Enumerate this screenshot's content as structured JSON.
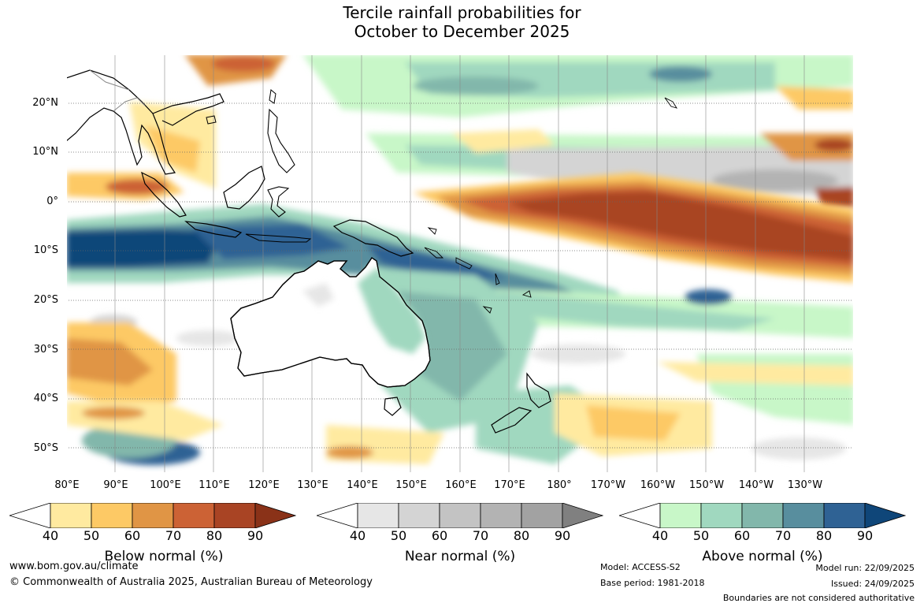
{
  "title": {
    "line1": "Tercile rainfall probabilities for",
    "line2": "October to December 2025"
  },
  "map": {
    "lat_labels": [
      "20°N",
      "10°N",
      "0°",
      "10°S",
      "20°S",
      "30°S",
      "40°S",
      "50°S"
    ],
    "lon_labels": [
      "80°E",
      "90°E",
      "100°E",
      "110°E",
      "120°E",
      "130°E",
      "140°E",
      "150°E",
      "160°E",
      "170°E",
      "180°",
      "170°W",
      "160°W",
      "150°W",
      "140°W",
      "130°W"
    ]
  },
  "colorbars": {
    "below": {
      "label": "Below normal (%)",
      "ticks": [
        "40",
        "50",
        "60",
        "70",
        "80",
        "90"
      ],
      "colors": [
        "#ffffff",
        "#ffeaa0",
        "#fdc965",
        "#e09545",
        "#cc6235",
        "#a94424",
        "#8a3218"
      ]
    },
    "near": {
      "label": "Near normal (%)",
      "ticks": [
        "40",
        "50",
        "60",
        "70",
        "80",
        "90"
      ],
      "colors": [
        "#ffffff",
        "#e6e6e6",
        "#d4d4d4",
        "#c3c3c3",
        "#b3b3b3",
        "#a2a2a2",
        "#808080"
      ]
    },
    "above": {
      "label": "Above normal (%)",
      "ticks": [
        "40",
        "50",
        "60",
        "70",
        "80",
        "90"
      ],
      "colors": [
        "#ffffff",
        "#c8f7c8",
        "#a0d8bf",
        "#82b7ab",
        "#588e9e",
        "#2f6294",
        "#0f4679"
      ]
    }
  },
  "footer": {
    "website": "www.bom.gov.au/climate",
    "copyright": "© Commonwealth of Australia 2025, Australian Bureau of Meteorology",
    "model": "Model: ACCESS-S2",
    "base_period": "Base period: 1981-2018",
    "model_run": "Model run: 22/09/2025",
    "issued": "Issued: 24/09/2025",
    "disclaimer": "Boundaries are not considered authoritative"
  }
}
